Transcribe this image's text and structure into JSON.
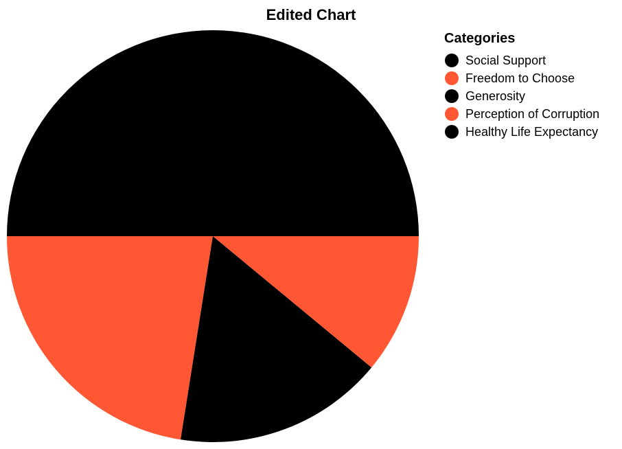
{
  "chart_data": {
    "type": "pie",
    "title": "Edited Chart",
    "legend": {
      "title": "Categories",
      "placement": "top-right"
    },
    "categories": [
      "Social Support",
      "Freedom to Choose",
      "Generosity",
      "Perception of Corruption",
      "Healthy Life Expectancy"
    ],
    "values": [
      50.0,
      22.5,
      16.5,
      11.0,
      0
    ],
    "colors": [
      "#000000",
      "#ff5733",
      "#000000",
      "#ff5733",
      "#000000"
    ],
    "start_angle_deg": 90,
    "direction": "clockwise"
  }
}
